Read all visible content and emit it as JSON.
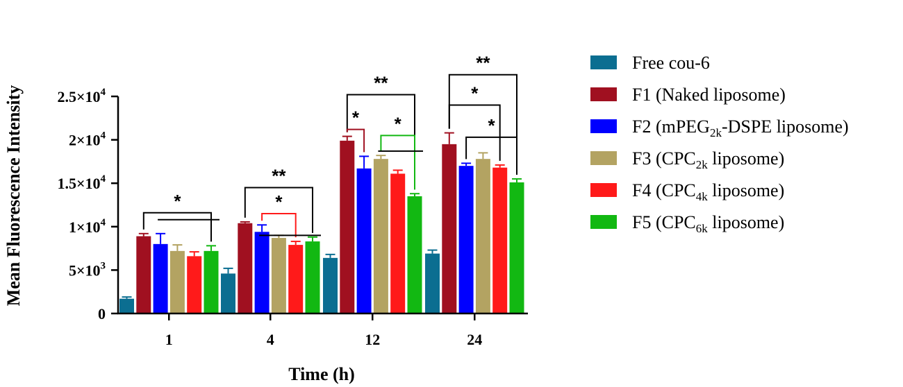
{
  "chart_data": {
    "type": "bar",
    "xlabel": "Time (h)",
    "ylabel": "Mean Fluorescence Intensity",
    "ylim": [
      0,
      25000
    ],
    "yticks": [
      {
        "value": 0,
        "base": "0",
        "exp": ""
      },
      {
        "value": 5000,
        "base": "5×10",
        "exp": "3"
      },
      {
        "value": 10000,
        "base": "1×10",
        "exp": "4"
      },
      {
        "value": 15000,
        "base": "1.5×10",
        "exp": "4"
      },
      {
        "value": 20000,
        "base": "2×10",
        "exp": "4"
      },
      {
        "value": 25000,
        "base": "2.5×10",
        "exp": "4"
      }
    ],
    "categories": [
      "1",
      "4",
      "12",
      "24"
    ],
    "series": [
      {
        "name": "Free cou-6",
        "name_parts": [
          {
            "t": "Free cou-6"
          }
        ],
        "color": "#0b6e91",
        "values": [
          1700,
          4600,
          6400,
          6900
        ],
        "errors": [
          200,
          600,
          400,
          400
        ]
      },
      {
        "name": "F1 (Naked liposome)",
        "name_parts": [
          {
            "t": "F1 (Naked liposome)"
          }
        ],
        "color": "#a01020",
        "values": [
          8900,
          10400,
          19900,
          19500
        ],
        "errors": [
          300,
          150,
          500,
          1300
        ]
      },
      {
        "name": "F2 (mPEG2k-DSPE liposome)",
        "name_parts": [
          {
            "t": "F2 (mPEG"
          },
          {
            "t": "2k",
            "sub": true
          },
          {
            "t": "-DSPE liposome)"
          }
        ],
        "color": "#0000ff",
        "values": [
          8000,
          9400,
          16700,
          17000
        ],
        "errors": [
          1200,
          800,
          1400,
          300
        ]
      },
      {
        "name": "F3 (CPC2k liposome)",
        "name_parts": [
          {
            "t": "F3 (CPC"
          },
          {
            "t": "2k",
            "sub": true
          },
          {
            "t": " liposome)"
          }
        ],
        "color": "#b3a362",
        "values": [
          7200,
          8700,
          17800,
          17800
        ],
        "errors": [
          700,
          300,
          400,
          700
        ]
      },
      {
        "name": "F4 (CPC4k liposome)",
        "name_parts": [
          {
            "t": "F4 (CPC"
          },
          {
            "t": "4k",
            "sub": true
          },
          {
            "t": " liposome)"
          }
        ],
        "color": "#ff1a1a",
        "values": [
          6600,
          7900,
          16100,
          16800
        ],
        "errors": [
          500,
          400,
          400,
          300
        ]
      },
      {
        "name": "F5 (CPC6k liposome)",
        "name_parts": [
          {
            "t": "F5 (CPC"
          },
          {
            "t": "6k",
            "sub": true
          },
          {
            "t": " liposome)"
          }
        ],
        "color": "#12b812",
        "values": [
          7200,
          8300,
          13500,
          15100
        ],
        "errors": [
          600,
          500,
          300,
          400
        ]
      }
    ],
    "significance": [
      {
        "group": 0,
        "from": 1,
        "to": 5,
        "y": 11600,
        "label": "*",
        "color": "#000000"
      },
      {
        "group": 1,
        "from": 1,
        "to": 5,
        "y": 14500,
        "label": "**",
        "color": "#000000"
      },
      {
        "group": 1,
        "from": 2,
        "to": 4,
        "y": 11500,
        "label": "*",
        "color": "#ff1a1a"
      },
      {
        "group": 2,
        "from": 1,
        "to": 5,
        "y": 25200,
        "label": "**",
        "color": "#000000"
      },
      {
        "group": 2,
        "from": 1,
        "to": 2,
        "y": 21200,
        "label": "*",
        "color": "#a01020"
      },
      {
        "group": 2,
        "from": 3,
        "to": 5,
        "y": 20500,
        "label": "*",
        "color": "#12b812"
      },
      {
        "group": 3,
        "from": 1,
        "to": 5,
        "y": 27500,
        "label": "**",
        "color": "#000000"
      },
      {
        "group": 3,
        "from": 1,
        "to": 4,
        "y": 24000,
        "label": "*",
        "color": "#000000"
      },
      {
        "group": 3,
        "from": 2,
        "to": 5,
        "y": 20300,
        "label": "*",
        "color": "#000000"
      }
    ],
    "legend_position": "right"
  }
}
